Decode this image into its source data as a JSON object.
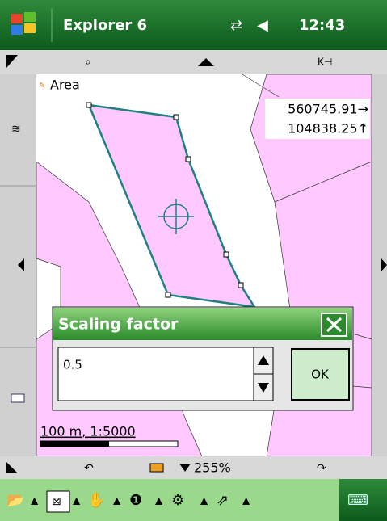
{
  "title_bar": {
    "app": "Explorer 6",
    "time": "12:43"
  },
  "map": {
    "layer": "Area",
    "coord_x": "560745.91→",
    "coord_y": "104838.25↑",
    "scale": "100 m, 1:5000"
  },
  "dialog": {
    "title": "Scaling factor",
    "input": "0.5",
    "button": "OK"
  },
  "toolbar": {
    "zoom": "255%"
  }
}
